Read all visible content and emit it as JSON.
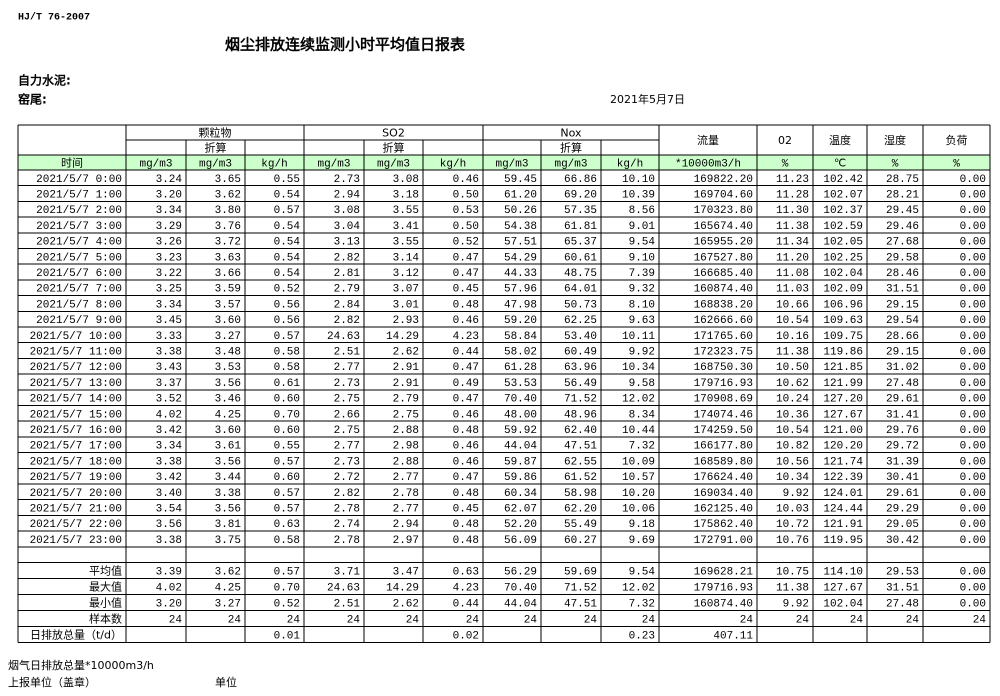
{
  "header": {
    "standard": "HJ/T  76-2007",
    "title": "烟尘排放连续监测小时平均值日报表",
    "company": "自力水泥:",
    "unit": "窑尾:",
    "date": "2021年5月7日"
  },
  "table": {
    "groups": [
      {
        "label": "颗粒物",
        "sub": "折算"
      },
      {
        "label": "SO2",
        "sub": "折算"
      },
      {
        "label": "Nox",
        "sub": "折算"
      }
    ],
    "single_headers": [
      "流量",
      "02",
      "温度",
      "湿度",
      "负荷"
    ],
    "time_header": "时间",
    "units": [
      "mg/m3",
      "mg/m3",
      "kg/h",
      "mg/m3",
      "mg/m3",
      "kg/h",
      "mg/m3",
      "mg/m3",
      "kg/h",
      "*10000m3/h",
      "%",
      "℃",
      "%",
      "%"
    ],
    "rows": [
      [
        "2021/5/7 0:00",
        "3.24",
        "3.65",
        "0.55",
        "2.73",
        "3.08",
        "0.46",
        "59.45",
        "66.86",
        "10.10",
        "169822.20",
        "11.23",
        "102.42",
        "28.75",
        "0.00"
      ],
      [
        "2021/5/7 1:00",
        "3.20",
        "3.62",
        "0.54",
        "2.94",
        "3.18",
        "0.50",
        "61.20",
        "69.20",
        "10.39",
        "169704.60",
        "11.28",
        "102.07",
        "28.21",
        "0.00"
      ],
      [
        "2021/5/7 2:00",
        "3.34",
        "3.80",
        "0.57",
        "3.08",
        "3.55",
        "0.53",
        "50.26",
        "57.35",
        "8.56",
        "170323.80",
        "11.30",
        "102.37",
        "29.45",
        "0.00"
      ],
      [
        "2021/5/7 3:00",
        "3.29",
        "3.76",
        "0.54",
        "3.04",
        "3.41",
        "0.50",
        "54.38",
        "61.81",
        "9.01",
        "165674.40",
        "11.38",
        "102.59",
        "29.46",
        "0.00"
      ],
      [
        "2021/5/7 4:00",
        "3.26",
        "3.72",
        "0.54",
        "3.13",
        "3.55",
        "0.52",
        "57.51",
        "65.37",
        "9.54",
        "165955.20",
        "11.34",
        "102.05",
        "27.68",
        "0.00"
      ],
      [
        "2021/5/7 5:00",
        "3.23",
        "3.63",
        "0.54",
        "2.82",
        "3.14",
        "0.47",
        "54.29",
        "60.61",
        "9.10",
        "167527.80",
        "11.20",
        "102.25",
        "29.58",
        "0.00"
      ],
      [
        "2021/5/7 6:00",
        "3.22",
        "3.66",
        "0.54",
        "2.81",
        "3.12",
        "0.47",
        "44.33",
        "48.75",
        "7.39",
        "166685.40",
        "11.08",
        "102.04",
        "28.46",
        "0.00"
      ],
      [
        "2021/5/7 7:00",
        "3.25",
        "3.59",
        "0.52",
        "2.79",
        "3.07",
        "0.45",
        "57.96",
        "64.01",
        "9.32",
        "160874.40",
        "11.03",
        "102.09",
        "31.51",
        "0.00"
      ],
      [
        "2021/5/7 8:00",
        "3.34",
        "3.57",
        "0.56",
        "2.84",
        "3.01",
        "0.48",
        "47.98",
        "50.73",
        "8.10",
        "168838.20",
        "10.66",
        "106.96",
        "29.15",
        "0.00"
      ],
      [
        "2021/5/7 9:00",
        "3.45",
        "3.60",
        "0.56",
        "2.82",
        "2.93",
        "0.46",
        "59.20",
        "62.25",
        "9.63",
        "162666.60",
        "10.54",
        "109.63",
        "29.54",
        "0.00"
      ],
      [
        "2021/5/7 10:00",
        "3.33",
        "3.27",
        "0.57",
        "24.63",
        "14.29",
        "4.23",
        "58.84",
        "53.40",
        "10.11",
        "171765.60",
        "10.16",
        "109.75",
        "28.66",
        "0.00"
      ],
      [
        "2021/5/7 11:00",
        "3.38",
        "3.48",
        "0.58",
        "2.51",
        "2.62",
        "0.44",
        "58.02",
        "60.49",
        "9.92",
        "172323.75",
        "11.38",
        "119.86",
        "29.15",
        "0.00"
      ],
      [
        "2021/5/7 12:00",
        "3.43",
        "3.53",
        "0.58",
        "2.77",
        "2.91",
        "0.47",
        "61.28",
        "63.96",
        "10.34",
        "168750.30",
        "10.50",
        "121.85",
        "31.02",
        "0.00"
      ],
      [
        "2021/5/7 13:00",
        "3.37",
        "3.56",
        "0.61",
        "2.73",
        "2.91",
        "0.49",
        "53.53",
        "56.49",
        "9.58",
        "179716.93",
        "10.62",
        "121.99",
        "27.48",
        "0.00"
      ],
      [
        "2021/5/7 14:00",
        "3.52",
        "3.46",
        "0.60",
        "2.75",
        "2.79",
        "0.47",
        "70.40",
        "71.52",
        "12.02",
        "170908.69",
        "10.24",
        "127.20",
        "29.61",
        "0.00"
      ],
      [
        "2021/5/7 15:00",
        "4.02",
        "4.25",
        "0.70",
        "2.66",
        "2.75",
        "0.46",
        "48.00",
        "48.96",
        "8.34",
        "174074.46",
        "10.36",
        "127.67",
        "31.41",
        "0.00"
      ],
      [
        "2021/5/7 16:00",
        "3.42",
        "3.60",
        "0.60",
        "2.75",
        "2.88",
        "0.48",
        "59.92",
        "62.40",
        "10.44",
        "174259.50",
        "10.54",
        "121.00",
        "29.76",
        "0.00"
      ],
      [
        "2021/5/7 17:00",
        "3.34",
        "3.61",
        "0.55",
        "2.77",
        "2.98",
        "0.46",
        "44.04",
        "47.51",
        "7.32",
        "166177.80",
        "10.82",
        "120.20",
        "29.72",
        "0.00"
      ],
      [
        "2021/5/7 18:00",
        "3.38",
        "3.56",
        "0.57",
        "2.73",
        "2.88",
        "0.46",
        "59.87",
        "62.55",
        "10.09",
        "168589.80",
        "10.56",
        "121.74",
        "31.39",
        "0.00"
      ],
      [
        "2021/5/7 19:00",
        "3.42",
        "3.44",
        "0.60",
        "2.72",
        "2.77",
        "0.47",
        "59.86",
        "61.52",
        "10.57",
        "176624.40",
        "10.34",
        "122.39",
        "30.41",
        "0.00"
      ],
      [
        "2021/5/7 20:00",
        "3.40",
        "3.38",
        "0.57",
        "2.82",
        "2.78",
        "0.48",
        "60.34",
        "58.98",
        "10.20",
        "169034.40",
        "9.92",
        "124.01",
        "29.61",
        "0.00"
      ],
      [
        "2021/5/7 21:00",
        "3.54",
        "3.56",
        "0.57",
        "2.78",
        "2.77",
        "0.45",
        "62.07",
        "62.20",
        "10.06",
        "162125.40",
        "10.03",
        "124.44",
        "29.29",
        "0.00"
      ],
      [
        "2021/5/7 22:00",
        "3.56",
        "3.81",
        "0.63",
        "2.74",
        "2.94",
        "0.48",
        "52.20",
        "55.49",
        "9.18",
        "175862.40",
        "10.72",
        "121.91",
        "29.05",
        "0.00"
      ],
      [
        "2021/5/7 23:00",
        "3.38",
        "3.75",
        "0.58",
        "2.78",
        "2.97",
        "0.48",
        "56.09",
        "60.27",
        "9.69",
        "172791.00",
        "10.76",
        "119.95",
        "30.42",
        "0.00"
      ]
    ],
    "summary": [
      [
        "平均值",
        "3.39",
        "3.62",
        "0.57",
        "3.71",
        "3.47",
        "0.63",
        "56.29",
        "59.69",
        "9.54",
        "169628.21",
        "10.75",
        "114.10",
        "29.53",
        "0.00"
      ],
      [
        "最大值",
        "4.02",
        "4.25",
        "0.70",
        "24.63",
        "14.29",
        "4.23",
        "70.40",
        "71.52",
        "12.02",
        "179716.93",
        "11.38",
        "127.67",
        "31.51",
        "0.00"
      ],
      [
        "最小值",
        "3.20",
        "3.27",
        "0.52",
        "2.51",
        "2.62",
        "0.44",
        "44.04",
        "47.51",
        "7.32",
        "160874.40",
        "9.92",
        "102.04",
        "27.48",
        "0.00"
      ],
      [
        "样本数",
        "24",
        "24",
        "24",
        "24",
        "24",
        "24",
        "24",
        "24",
        "24",
        "24",
        "24",
        "24",
        "24",
        "24"
      ],
      [
        "日排放总量（t/d）",
        null,
        null,
        "0.01",
        null,
        null,
        "0.02",
        null,
        null,
        "0.23",
        "407.11",
        null,
        null,
        null,
        null
      ]
    ]
  },
  "footer": {
    "daily_flow_total": "烟气日排放总量*10000m3/h",
    "reporter": "上报单位（盖章）",
    "unit": "单位"
  }
}
